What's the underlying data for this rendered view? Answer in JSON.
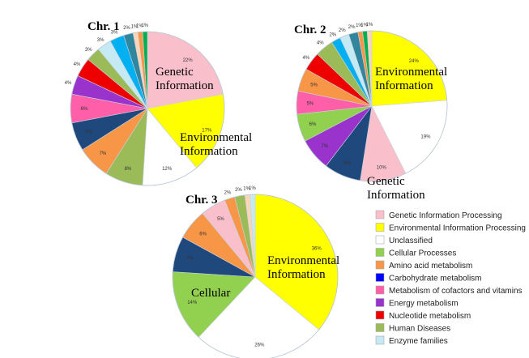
{
  "chart_data": [
    {
      "type": "pie",
      "title": "Chr. 1",
      "slices": [
        {
          "category": "Genetic Information Processing",
          "value": 22,
          "label": "22%",
          "color": "#f9c0cb"
        },
        {
          "category": "Environmental Information Processing",
          "value": 17,
          "label": "17%",
          "color": "#ffff00"
        },
        {
          "category": "Unclassified",
          "value": 12,
          "label": "12%",
          "color": "#ffffff"
        },
        {
          "category": "Cellular Processes",
          "value": 8,
          "label": "8%",
          "color": "#9bbb59"
        },
        {
          "category": "Amino acid metabolism",
          "value": 7,
          "label": "7%",
          "color": "#f79646"
        },
        {
          "category": "Dark blue",
          "value": 6,
          "label": "6%",
          "color": "#1f497d"
        },
        {
          "category": "Metabolism of cofactors and vitamins",
          "value": 6,
          "label": "6%",
          "color": "#ff5fa8"
        },
        {
          "category": "Energy metabolism",
          "value": 4,
          "label": "4%",
          "color": "#9933cc"
        },
        {
          "category": "Nucleotide metabolism",
          "value": 4,
          "label": "4%",
          "color": "#ee0000"
        },
        {
          "category": "Human Diseases",
          "value": 3,
          "label": "3%",
          "color": "#9bbb59"
        },
        {
          "category": "Enzyme families",
          "value": 3,
          "label": "3%",
          "color": "#c6eaf4"
        },
        {
          "category": "Cyan",
          "value": 3,
          "label": "3%",
          "color": "#00b0f0"
        },
        {
          "category": "Dark green",
          "value": 2,
          "label": "2%",
          "color": "#31859c"
        },
        {
          "category": "Light pink",
          "value": 1,
          "label": "1%",
          "color": "#fbd5b5"
        },
        {
          "category": "Orange",
          "value": 1,
          "label": "1%",
          "color": "#f79646"
        },
        {
          "category": "Green",
          "value": 1,
          "label": "1%",
          "color": "#00b050"
        }
      ],
      "annotations": [
        "Genetic\nInformation",
        "Environmental\nInformation"
      ]
    },
    {
      "type": "pie",
      "title": "Chr. 2",
      "slices": [
        {
          "category": "Environmental Information Processing",
          "value": 24,
          "label": "24%",
          "color": "#ffff00"
        },
        {
          "category": "Unclassified",
          "value": 19,
          "label": "19%",
          "color": "#ffffff"
        },
        {
          "category": "Genetic Information Processing",
          "value": 10,
          "label": "10%",
          "color": "#f9c0cb"
        },
        {
          "category": "Dark blue",
          "value": 8,
          "label": "8%",
          "color": "#1f497d"
        },
        {
          "category": "Energy metabolism",
          "value": 7,
          "label": "7%",
          "color": "#9933cc"
        },
        {
          "category": "Cellular Processes",
          "value": 6,
          "label": "6%",
          "color": "#92d050"
        },
        {
          "category": "Metabolism of cofactors and vitamins",
          "value": 5,
          "label": "5%",
          "color": "#ff5fa8"
        },
        {
          "category": "Amino acid metabolism",
          "value": 5,
          "label": "5%",
          "color": "#f79646"
        },
        {
          "category": "Nucleotide metabolism",
          "value": 4,
          "label": "4%",
          "color": "#ee0000"
        },
        {
          "category": "Human Diseases",
          "value": 4,
          "label": "4%",
          "color": "#9bbb59"
        },
        {
          "category": "Cyan",
          "value": 2,
          "label": "2%",
          "color": "#00b0f0"
        },
        {
          "category": "Enzyme families",
          "value": 2,
          "label": "2%",
          "color": "#c6eaf4"
        },
        {
          "category": "Dark green",
          "value": 2,
          "label": "2%",
          "color": "#31859c"
        },
        {
          "category": "Orange",
          "value": 1,
          "label": "1%",
          "color": "#f79646"
        },
        {
          "category": "Green",
          "value": 1,
          "label": "1%",
          "color": "#00b050"
        },
        {
          "category": "Light pink",
          "value": 1,
          "label": "1%",
          "color": "#fbd5b5"
        }
      ],
      "annotations": [
        "Environmental\nInformation",
        "Genetic\nInformation"
      ]
    },
    {
      "type": "pie",
      "title": "Chr. 3",
      "slices": [
        {
          "category": "Environmental Information Processing",
          "value": 36,
          "label": "36%",
          "color": "#ffff00"
        },
        {
          "category": "Unclassified",
          "value": 26,
          "label": "26%",
          "color": "#ffffff"
        },
        {
          "category": "Cellular Processes",
          "value": 14,
          "label": "14%",
          "color": "#92d050"
        },
        {
          "category": "Dark blue",
          "value": 7,
          "label": "7%",
          "color": "#1f497d"
        },
        {
          "category": "Amino acid metabolism",
          "value": 6,
          "label": "6%",
          "color": "#f79646"
        },
        {
          "category": "Genetic Information Processing",
          "value": 5,
          "label": "5%",
          "color": "#f9c0cb"
        },
        {
          "category": "Orange",
          "value": 2,
          "label": "2%",
          "color": "#f79646"
        },
        {
          "category": "Human Diseases",
          "value": 2,
          "label": "2%",
          "color": "#9bbb59"
        },
        {
          "category": "Light pink",
          "value": 1,
          "label": "1%",
          "color": "#fbd5b5"
        },
        {
          "category": "Enzyme families",
          "value": 1,
          "label": "1%",
          "color": "#c6eaf4"
        }
      ],
      "annotations": [
        "Environmental\nInformation",
        "Cellular"
      ]
    }
  ],
  "legend": [
    {
      "label": "Genetic Information Processing",
      "color": "#f9c0cb"
    },
    {
      "label": "Environmental Information Processing",
      "color": "#ffff00"
    },
    {
      "label": "Unclassified",
      "color": "#ffffff"
    },
    {
      "label": "Cellular Processes",
      "color": "#92d050"
    },
    {
      "label": "Amino acid metabolism",
      "color": "#f79646"
    },
    {
      "label": "Carbohydrate metabolism",
      "color": "#0000ff"
    },
    {
      "label": "Metabolism of cofactors and vitamins",
      "color": "#ff5fa8"
    },
    {
      "label": "Energy metabolism",
      "color": "#9933cc"
    },
    {
      "label": "Nucleotide metabolism",
      "color": "#ee0000"
    },
    {
      "label": "Human Diseases",
      "color": "#9bbb59"
    },
    {
      "label": "Enzyme families",
      "color": "#c6eaf4"
    }
  ]
}
